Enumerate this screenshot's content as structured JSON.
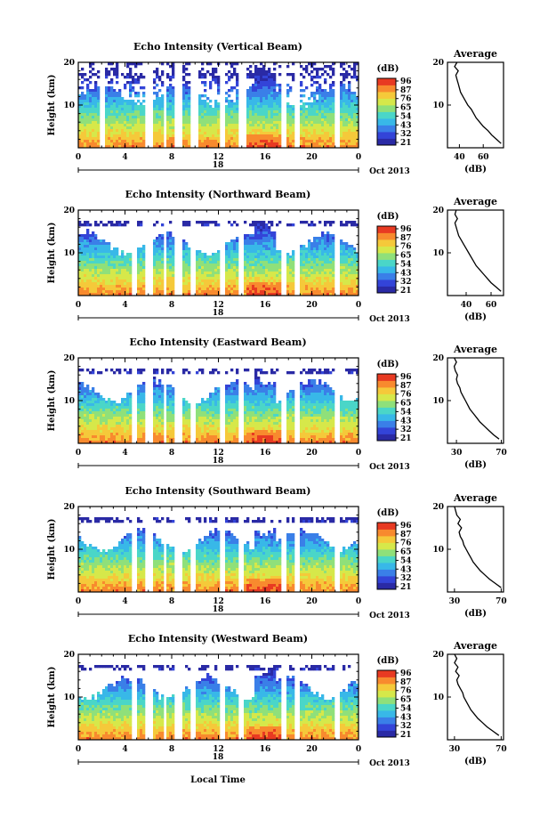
{
  "colorbar": {
    "unit": "(dB)",
    "ticks": [
      "96",
      "87",
      "76",
      "65",
      "54",
      "43",
      "32",
      "21"
    ],
    "colors": [
      "#2a2aa5",
      "#3344d8",
      "#3a7fe8",
      "#38b8e8",
      "#4ad6c8",
      "#8fe07a",
      "#d6e84a",
      "#f5c93a",
      "#f88a2e",
      "#e83a22"
    ]
  },
  "x_axis": {
    "label": "Local Time",
    "ticks": [
      "0",
      "4",
      "8",
      "12",
      "16",
      "20",
      "0"
    ],
    "date_tick": "18",
    "month_label": "Oct 2013"
  },
  "y_axis": {
    "label": "Height (km)",
    "ticks": [
      "20",
      "10"
    ]
  },
  "chart_data": [
    {
      "type": "heatmap",
      "title": "Echo Intensity (Vertical Beam)",
      "xlabel": "",
      "ylabel": "Height (km)",
      "xlim": [
        0,
        24
      ],
      "ylim": [
        0,
        20
      ],
      "colorbar_label": "(dB)",
      "clim": [
        21,
        96
      ],
      "gap_hours": [
        [
          1.9,
          2.2
        ],
        [
          5.8,
          6.4
        ],
        [
          7.2,
          7.6
        ],
        [
          8.3,
          8.8
        ],
        [
          9.6,
          10.2
        ],
        [
          12.2,
          12.6
        ],
        [
          13.8,
          14.3
        ],
        [
          17.4,
          17.9
        ],
        [
          18.6,
          19.0
        ],
        [
          22.0,
          22.5
        ]
      ],
      "average_profile": {
        "title": "Average",
        "xlabel": "(dB)",
        "xticks": [
          "40",
          "60"
        ],
        "yticks": [
          "20",
          "10"
        ],
        "height_km": [
          1,
          2,
          3,
          4,
          5,
          6,
          7,
          8,
          9,
          10,
          11,
          12,
          13,
          14,
          15,
          16,
          17,
          18,
          19,
          20
        ],
        "db": [
          75,
          71,
          67,
          64,
          60,
          57,
          54,
          52,
          50,
          47,
          45,
          43,
          41,
          40,
          39,
          38,
          37,
          39,
          36,
          38
        ]
      }
    },
    {
      "type": "heatmap",
      "title": "Echo Intensity (Northward Beam)",
      "xlabel": "",
      "ylabel": "Height (km)",
      "xlim": [
        0,
        24
      ],
      "ylim": [
        0,
        20
      ],
      "colorbar_label": "(dB)",
      "clim": [
        21,
        96
      ],
      "gap_hours": [
        [
          4.6,
          5.1
        ],
        [
          5.8,
          6.3
        ],
        [
          7.2,
          7.6
        ],
        [
          8.3,
          8.8
        ],
        [
          9.6,
          10.1
        ],
        [
          12.2,
          12.6
        ],
        [
          13.8,
          14.2
        ],
        [
          17.4,
          17.9
        ],
        [
          18.6,
          19.0
        ],
        [
          22.0,
          22.4
        ]
      ],
      "average_profile": {
        "title": "Average",
        "xlabel": "(dB)",
        "xticks": [
          "40",
          "60"
        ],
        "yticks": [
          "20",
          "10"
        ],
        "height_km": [
          1,
          2,
          3,
          4,
          5,
          6,
          7,
          8,
          9,
          10,
          11,
          12,
          13,
          14,
          15,
          16,
          17,
          18,
          19,
          20
        ],
        "db": [
          68,
          64,
          60,
          57,
          54,
          51,
          48,
          46,
          44,
          42,
          40,
          38,
          36,
          34,
          33,
          32,
          31,
          33,
          31,
          32
        ]
      }
    },
    {
      "type": "heatmap",
      "title": "Echo Intensity (Eastward Beam)",
      "xlabel": "",
      "ylabel": "Height (km)",
      "xlim": [
        0,
        24
      ],
      "ylim": [
        0,
        20
      ],
      "colorbar_label": "(dB)",
      "clim": [
        21,
        96
      ],
      "gap_hours": [
        [
          4.6,
          5.1
        ],
        [
          5.8,
          6.3
        ],
        [
          7.2,
          7.6
        ],
        [
          8.3,
          8.8
        ],
        [
          9.6,
          10.1
        ],
        [
          12.2,
          12.6
        ],
        [
          13.8,
          14.2
        ],
        [
          17.4,
          17.9
        ],
        [
          18.6,
          19.0
        ],
        [
          22.0,
          22.4
        ]
      ],
      "average_profile": {
        "title": "Average",
        "xlabel": "(dB)",
        "xticks": [
          "30",
          "70"
        ],
        "yticks": [
          "20",
          "10"
        ],
        "height_km": [
          1,
          2,
          3,
          4,
          5,
          6,
          7,
          8,
          9,
          10,
          11,
          12,
          13,
          14,
          15,
          16,
          17,
          18,
          19,
          20
        ],
        "db": [
          68,
          63,
          59,
          55,
          51,
          48,
          45,
          42,
          40,
          38,
          36,
          34,
          33,
          31,
          30,
          31,
          29,
          28,
          30,
          28
        ]
      }
    },
    {
      "type": "heatmap",
      "title": "Echo Intensity (Southward Beam)",
      "xlabel": "",
      "ylabel": "Height (km)",
      "xlim": [
        0,
        24
      ],
      "ylim": [
        0,
        20
      ],
      "colorbar_label": "(dB)",
      "clim": [
        21,
        96
      ],
      "gap_hours": [
        [
          4.6,
          5.1
        ],
        [
          5.8,
          6.3
        ],
        [
          7.2,
          7.6
        ],
        [
          8.3,
          8.8
        ],
        [
          9.6,
          10.1
        ],
        [
          12.2,
          12.6
        ],
        [
          13.8,
          14.2
        ],
        [
          17.4,
          17.9
        ],
        [
          18.6,
          19.0
        ],
        [
          22.0,
          22.4
        ]
      ],
      "average_profile": {
        "title": "Average",
        "xlabel": "(dB)",
        "xticks": [
          "30",
          "70"
        ],
        "yticks": [
          "20",
          "10"
        ],
        "height_km": [
          1,
          2,
          3,
          4,
          5,
          6,
          7,
          8,
          9,
          10,
          11,
          12,
          13,
          14,
          15,
          16,
          17,
          18,
          19,
          20
        ],
        "db": [
          70,
          65,
          60,
          56,
          52,
          49,
          46,
          44,
          42,
          40,
          38,
          37,
          35,
          34,
          36,
          33,
          35,
          32,
          31,
          30
        ]
      }
    },
    {
      "type": "heatmap",
      "title": "Echo Intensity (Westward Beam)",
      "xlabel": "Local Time",
      "ylabel": "Height (km)",
      "xlim": [
        0,
        24
      ],
      "ylim": [
        0,
        20
      ],
      "colorbar_label": "(dB)",
      "clim": [
        21,
        96
      ],
      "gap_hours": [
        [
          4.6,
          5.1
        ],
        [
          5.8,
          6.3
        ],
        [
          7.2,
          7.6
        ],
        [
          8.3,
          8.8
        ],
        [
          9.6,
          10.1
        ],
        [
          12.2,
          12.6
        ],
        [
          13.8,
          14.2
        ],
        [
          17.4,
          17.9
        ],
        [
          18.6,
          19.0
        ],
        [
          22.0,
          22.4
        ]
      ],
      "average_profile": {
        "title": "Average",
        "xlabel": "(dB)",
        "xticks": [
          "30",
          "70"
        ],
        "yticks": [
          "20",
          "10"
        ],
        "height_km": [
          1,
          2,
          3,
          4,
          5,
          6,
          7,
          8,
          9,
          10,
          11,
          12,
          13,
          14,
          15,
          16,
          17,
          18,
          19,
          20
        ],
        "db": [
          68,
          63,
          58,
          54,
          50,
          47,
          44,
          42,
          40,
          38,
          37,
          35,
          33,
          32,
          34,
          31,
          33,
          30,
          32,
          30
        ]
      }
    }
  ]
}
